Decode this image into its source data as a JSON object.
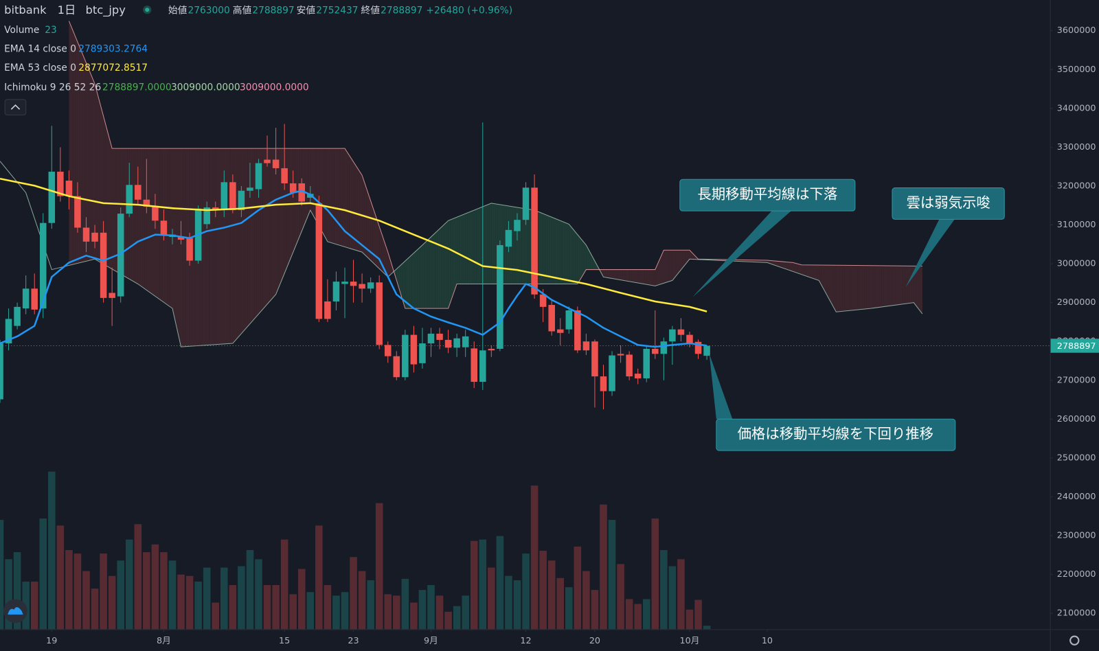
{
  "header": {
    "exchange": "bitbank",
    "interval": "1日",
    "symbol": "btc_jpy",
    "open_label": "始値",
    "high_label": "高値",
    "low_label": "安値",
    "close_label": "終値",
    "change": "+26480 (+0.96%)"
  },
  "indicator_legend": {
    "volume": "Volume",
    "ema14": "EMA 14 close 0",
    "ema53": "EMA 53 close 0",
    "ichimoku": "Ichimoku 9 26 52 26",
    "ichimoku_values": [
      "2788897.0000",
      "3009000.0000",
      "3009000.0000"
    ]
  },
  "annotations": [
    "長期移動平均線は下落",
    "雲は弱気示唆",
    "価格は移動平均線を下回り推移"
  ],
  "chart_data": {
    "type": "candlestick",
    "up_color": "#26a69a",
    "down_color": "#ef5350",
    "xlim": [
      0,
      121.8
    ],
    "ylim": [
      2059000,
      3679000
    ],
    "yticks": [
      2100000,
      2200000,
      2300000,
      2400000,
      2500000,
      2600000,
      2700000,
      2800000,
      2900000,
      3000000,
      3100000,
      3200000,
      3300000,
      3400000,
      3500000,
      3600000
    ],
    "xticks": [
      {
        "value": 6,
        "label": "19"
      },
      {
        "value": 19,
        "label": "8月"
      },
      {
        "value": 33,
        "label": "15"
      },
      {
        "value": 41,
        "label": "23"
      },
      {
        "value": 50,
        "label": "9月"
      },
      {
        "value": 61,
        "label": "12"
      },
      {
        "value": 69,
        "label": "20"
      },
      {
        "value": 80,
        "label": "10月"
      },
      {
        "value": 89,
        "label": "10"
      }
    ],
    "grid": false,
    "open": [
      2651000,
      2795000,
      2840000,
      2885000,
      2936000,
      2885000,
      3105000,
      3237000,
      3214000,
      3174000,
      3093000,
      3080000,
      3080000,
      2925000,
      2916000,
      3129000,
      3203000,
      3165000,
      3147000,
      3111000,
      3069000,
      3069000,
      3066000,
      3008000,
      3102000,
      3145000,
      3138000,
      3210000,
      3138000,
      3188000,
      3192000,
      3268000,
      3268000,
      3246000,
      3207000,
      3207000,
      3170000,
      3156000,
      2903000,
      2903000,
      2948000,
      2954000,
      2948000,
      2936000,
      2952000,
      2791000,
      2762000,
      2708000,
      2817000,
      2744000,
      2795000,
      2820000,
      2804000,
      2784000,
      2785000,
      2782000,
      2696000,
      2781000,
      2781000,
      3044000,
      3084000,
      3113000,
      3196000,
      2921000,
      2894000,
      2831000,
      2831000,
      2880000,
      2800000,
      2800000,
      2710000,
      2672000,
      2768000,
      2766000,
      2717000,
      2705000,
      2781000,
      2768000,
      2800000,
      2831000,
      2817000,
      2799000,
      2763000
    ],
    "high": [
      2804000,
      2885000,
      2900000,
      2970000,
      2975000,
      3130000,
      3355000,
      3300000,
      3240000,
      3210000,
      3120000,
      3100000,
      3110000,
      2990000,
      3145000,
      3260000,
      3250000,
      3270000,
      3180000,
      3140000,
      3090000,
      3110000,
      3080000,
      3150000,
      3160000,
      3160000,
      3240000,
      3230000,
      3200000,
      3260000,
      3270000,
      3330000,
      3350000,
      3360000,
      3240000,
      3220000,
      3200000,
      3175000,
      2960000,
      2980000,
      2990000,
      3010000,
      2975000,
      2965000,
      2970000,
      2800000,
      2775000,
      2830000,
      2840000,
      2835000,
      2835000,
      2835000,
      2830000,
      2820000,
      2830000,
      2800000,
      3364000,
      2790000,
      3060000,
      3110000,
      3130000,
      3210000,
      3230000,
      2935000,
      2905000,
      2860000,
      2890000,
      2890000,
      2820000,
      2805000,
      2740000,
      2775000,
      2790000,
      2775000,
      2730000,
      2790000,
      2880000,
      2810000,
      2840000,
      2860000,
      2825000,
      2805000,
      2788897
    ],
    "low": [
      2642000,
      2777000,
      2831000,
      2870000,
      2870000,
      2860000,
      3090000,
      3160000,
      3140000,
      3080000,
      3030000,
      3040000,
      2900000,
      2840000,
      2900000,
      3120000,
      3150000,
      3130000,
      3090000,
      3060000,
      3050000,
      3050000,
      2995000,
      3000000,
      3090000,
      3120000,
      3120000,
      3130000,
      3120000,
      3170000,
      3170000,
      3250000,
      3230000,
      3190000,
      3170000,
      3150000,
      3155000,
      2850000,
      2850000,
      2880000,
      2860000,
      2900000,
      2900000,
      2925000,
      2780000,
      2745000,
      2700000,
      2700000,
      2720000,
      2730000,
      2760000,
      2780000,
      2770000,
      2760000,
      2760000,
      2680000,
      2675000,
      2760000,
      2775000,
      3030000,
      3060000,
      3100000,
      2910000,
      2850000,
      2815000,
      2790000,
      2820000,
      2770000,
      2765000,
      2630000,
      2625000,
      2660000,
      2745000,
      2700000,
      2690000,
      2695000,
      2755000,
      2700000,
      2740000,
      2800000,
      2785000,
      2755000,
      2752437
    ],
    "close": [
      2795000,
      2858000,
      2889000,
      2936000,
      2882000,
      3105000,
      3237000,
      3174000,
      3174000,
      3093000,
      3057000,
      3057000,
      2912000,
      2912000,
      3129000,
      3203000,
      3165000,
      3147000,
      3111000,
      3075000,
      3075000,
      3062000,
      3008000,
      3142000,
      3145000,
      3138000,
      3210000,
      3138000,
      3188000,
      3196000,
      3259000,
      3259000,
      3246000,
      3207000,
      3183000,
      3160000,
      3180000,
      2858000,
      2858000,
      2954000,
      2954000,
      2943000,
      2936000,
      2952000,
      2791000,
      2762000,
      2708000,
      2817000,
      2741000,
      2795000,
      2820000,
      2804000,
      2784000,
      2808000,
      2813000,
      2696000,
      2777000,
      2777000,
      3048000,
      3087000,
      3113000,
      3196000,
      2921000,
      2889000,
      2826000,
      2822000,
      2880000,
      2777000,
      2777000,
      2710000,
      2672000,
      2764000,
      2764000,
      2710000,
      2705000,
      2781000,
      2768000,
      2800000,
      2831000,
      2817000,
      2795000,
      2768000,
      2788897
    ],
    "volume": [
      718,
      460,
      506,
      313,
      313,
      727,
      1035,
      681,
      520,
      497,
      382,
      267,
      497,
      350,
      451,
      589,
      690,
      506,
      557,
      506,
      451,
      359,
      350,
      313,
      405,
      175,
      405,
      290,
      414,
      520,
      460,
      290,
      290,
      589,
      230,
      396,
      244,
      681,
      290,
      221,
      244,
      474,
      382,
      322,
      828,
      230,
      221,
      331,
      175,
      258,
      290,
      221,
      115,
      152,
      221,
      580,
      589,
      405,
      612,
      350,
      322,
      497,
      943,
      515,
      451,
      336,
      276,
      543,
      382,
      258,
      819,
      718,
      428,
      198,
      166,
      198,
      727,
      520,
      414,
      460,
      129,
      193,
      23
    ],
    "lines": [
      {
        "type": "line",
        "name": "EMA 14 close 0",
        "color": "#2196f3",
        "width": 2.5,
        "x": [
          0,
          2,
          4,
          6,
          8,
          10,
          12,
          14,
          16,
          18,
          20,
          22,
          24,
          26,
          28,
          30,
          32,
          34,
          35,
          36,
          38,
          40,
          42,
          44,
          46,
          48,
          50,
          52,
          54,
          56,
          58,
          59,
          60,
          61,
          62,
          64,
          66,
          68,
          70,
          72,
          74,
          76,
          78,
          80,
          82
        ],
        "values": [
          2795000,
          2813000,
          2840000,
          2966000,
          3003000,
          3021000,
          3008000,
          3026000,
          3057000,
          3075000,
          3073000,
          3066000,
          3084000,
          3093000,
          3105000,
          3138000,
          3165000,
          3183000,
          3188000,
          3178000,
          3138000,
          3084000,
          3048000,
          3012000,
          2921000,
          2885000,
          2864000,
          2849000,
          2835000,
          2817000,
          2849000,
          2885000,
          2918000,
          2948000,
          2939000,
          2907000,
          2885000,
          2864000,
          2835000,
          2813000,
          2791000,
          2786000,
          2791000,
          2795000,
          2789303.2764
        ]
      },
      {
        "type": "line",
        "name": "EMA 53 close 0",
        "color": "#ffeb3b",
        "width": 2.5,
        "x": [
          0,
          4,
          8,
          12,
          16,
          20,
          24,
          28,
          32,
          36,
          40,
          44,
          48,
          52,
          56,
          60,
          62,
          64,
          68,
          72,
          76,
          80,
          82
        ],
        "values": [
          3219000,
          3201000,
          3174000,
          3156000,
          3152000,
          3143000,
          3138000,
          3142000,
          3152000,
          3156000,
          3138000,
          3111000,
          3075000,
          3039000,
          2994000,
          2984000,
          2975000,
          2966000,
          2948000,
          2925000,
          2903000,
          2889000,
          2877072.8517
        ]
      }
    ],
    "cloud": [
      {
        "type": "line",
        "color": "#a5c9b8",
        "x": [
          0,
          3,
          6,
          11,
          16,
          20,
          21,
          27,
          32,
          36,
          38,
          42,
          45,
          49,
          52,
          57,
          62,
          66,
          68,
          70,
          76,
          78,
          80,
          89,
          95,
          97,
          101,
          106,
          107
        ],
        "values": [
          3264000,
          3183000,
          2985000,
          3012000,
          2948000,
          2885000,
          2786000,
          2795000,
          2921000,
          3138000,
          3057000,
          3030000,
          2966000,
          3048000,
          3111000,
          3156000,
          3138000,
          3102000,
          3048000,
          2966000,
          2943000,
          2957000,
          3012000,
          3003000,
          2957000,
          2876000,
          2885000,
          2900000,
          2871000
        ]
      },
      {
        "type": "line",
        "color": "#f4a3a8",
        "x": [
          8,
          11,
          13,
          40,
          42,
          45,
          47,
          52,
          53,
          67,
          68,
          76,
          77,
          80,
          81,
          89,
          92,
          93,
          107
        ],
        "values": [
          3625000,
          3463000,
          3297000,
          3297000,
          3228000,
          3030000,
          2885000,
          2885000,
          2948000,
          2948000,
          2985000,
          2985000,
          3035000,
          3035000,
          3012000,
          3009000,
          3003000,
          2997000,
          2994000
        ]
      }
    ],
    "cloud_colors": {
      "bull": "#1f3b36",
      "bear": "#3a252d"
    }
  }
}
